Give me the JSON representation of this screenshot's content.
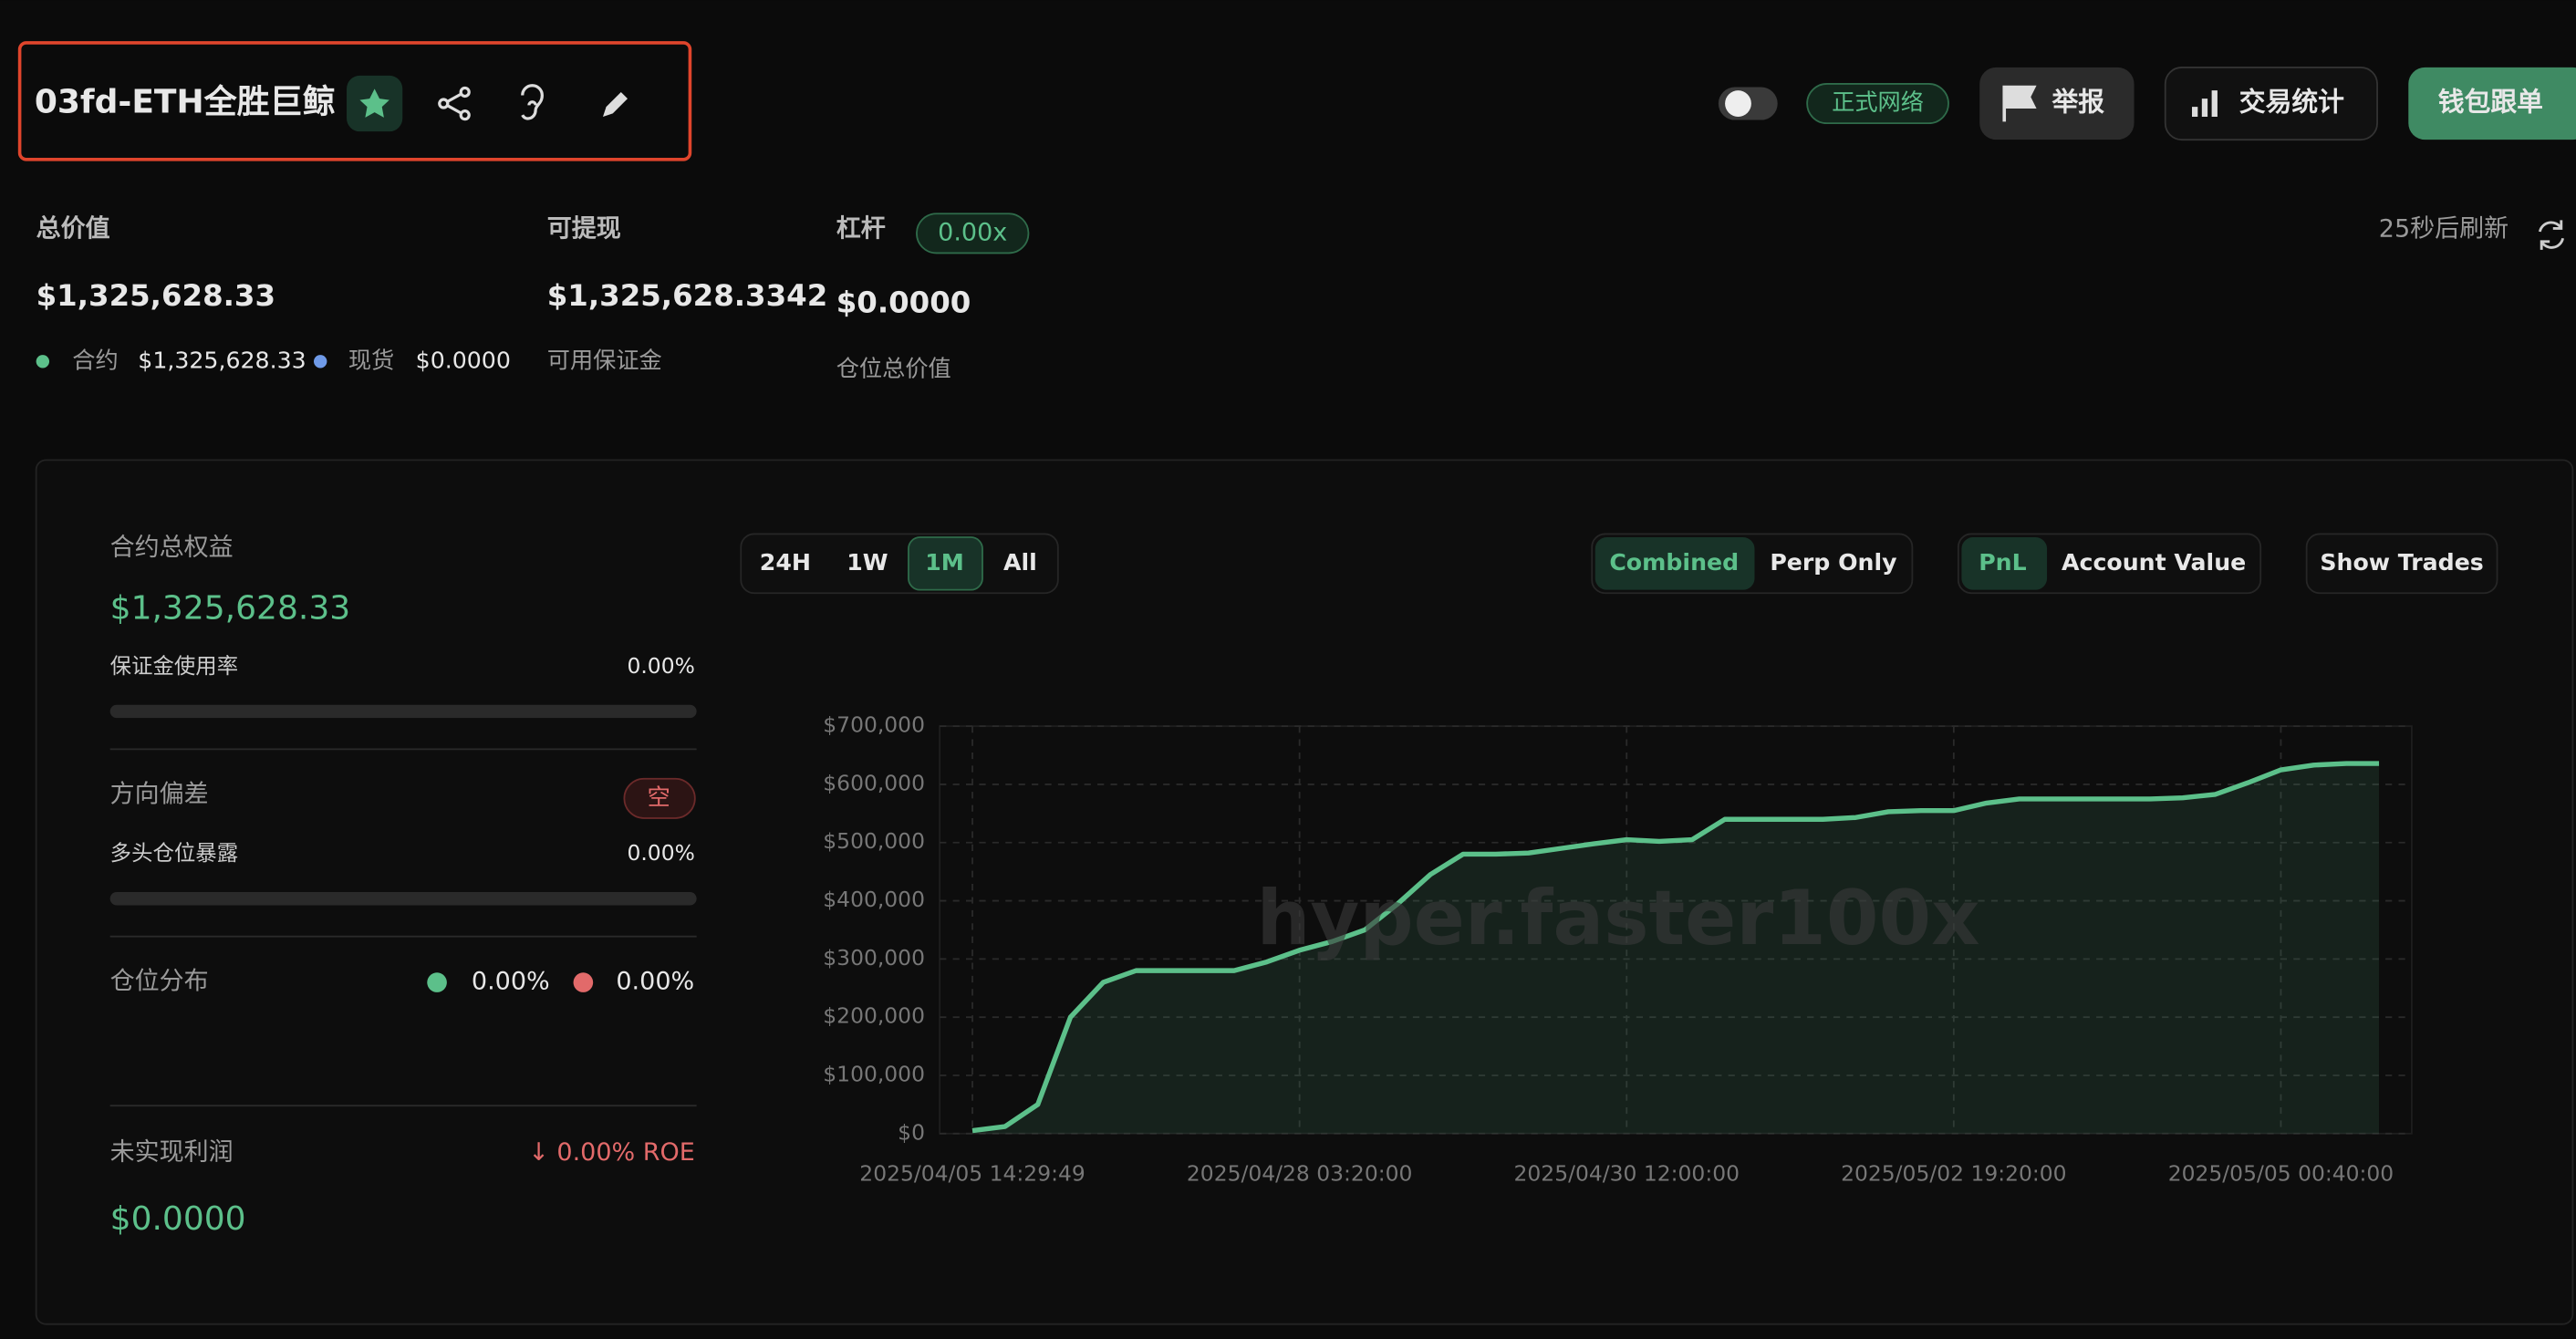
{
  "header": {
    "title": "03fd-ETH全胜巨鲸",
    "network": "正式网络",
    "buttons": [
      "举报",
      "交易统计",
      "钱包跟单"
    ]
  },
  "stats": {
    "total": {
      "label": "总价值",
      "value": "$1,325,628.33",
      "contract_label": "合约",
      "contract_value": "$1,325,628.33",
      "spot_label": "现货",
      "spot_value": "$0.0000"
    },
    "withdrawable": {
      "label": "可提现",
      "value": "$1,325,628.3342",
      "note": "可用保证金"
    },
    "leverage": {
      "label": "杠杆",
      "badge": "0.00x",
      "value": "$0.0000",
      "note": "仓位总价值"
    },
    "refresh": "25秒后刷新"
  },
  "panel": {
    "equity": {
      "label": "合约总权益",
      "value": "$1,325,628.33"
    },
    "margin_usage": {
      "label": "保证金使用率",
      "value": "0.00%"
    },
    "bias": {
      "label": "方向偏差",
      "value": "空"
    },
    "long_exposure": {
      "label": "多头仓位暴露",
      "value": "0.00%"
    },
    "distribution": {
      "label": "仓位分布",
      "long": "0.00%",
      "short": "0.00%"
    },
    "unrealized": {
      "label": "未实现利润",
      "roe": "↓ 0.00% ROE",
      "value": "$0.0000"
    }
  },
  "controls": {
    "ranges": [
      "24H",
      "1W",
      "1M",
      "All"
    ],
    "modes": [
      "Combined",
      "Perp Only"
    ],
    "metrics": [
      "PnL",
      "Account Value"
    ],
    "show_trades": "Show Trades"
  },
  "chart_data": {
    "type": "line",
    "watermark": "hyper.faster100x",
    "grid": true,
    "x": [
      0,
      1,
      2,
      3,
      4,
      5,
      6,
      7,
      8,
      9,
      10,
      11,
      12,
      13,
      14,
      15,
      16,
      17,
      18,
      19,
      20,
      21,
      22,
      23,
      24,
      25,
      26,
      27,
      28,
      29,
      30,
      31,
      32,
      33,
      34,
      35,
      36,
      37,
      38,
      39,
      40,
      41,
      42,
      43
    ],
    "series": [
      {
        "color": "#5cc08a",
        "values": [
          5000,
          12000,
          50000,
          200000,
          260000,
          280000,
          280000,
          280000,
          280000,
          295000,
          315000,
          330000,
          350000,
          395000,
          445000,
          480000,
          480000,
          482000,
          490000,
          498000,
          505000,
          502000,
          505000,
          540000,
          540000,
          540000,
          540000,
          543000,
          553000,
          555000,
          555000,
          568000,
          575000,
          575000,
          575000,
          575000,
          575000,
          577000,
          583000,
          603000,
          625000,
          633000,
          636000,
          636000
        ]
      }
    ],
    "xlim": [
      -1,
      44
    ],
    "xticks": [
      {
        "value": 0,
        "label": "2025/04/05 14:29:49"
      },
      {
        "value": 10,
        "label": "2025/04/28 03:20:00"
      },
      {
        "value": 20,
        "label": "2025/04/30 12:00:00"
      },
      {
        "value": 30,
        "label": "2025/05/02 19:20:00"
      },
      {
        "value": 40,
        "label": "2025/05/05 00:40:00"
      }
    ],
    "ylim": [
      0,
      700000
    ],
    "yticks": [
      {
        "value": 0,
        "label": "$0"
      },
      {
        "value": 100000,
        "label": "$100,000"
      },
      {
        "value": 200000,
        "label": "$200,000"
      },
      {
        "value": 300000,
        "label": "$300,000"
      },
      {
        "value": 400000,
        "label": "$400,000"
      },
      {
        "value": 500000,
        "label": "$500,000"
      },
      {
        "value": 600000,
        "label": "$600,000"
      },
      {
        "value": 700000,
        "label": "$700,000"
      }
    ]
  }
}
